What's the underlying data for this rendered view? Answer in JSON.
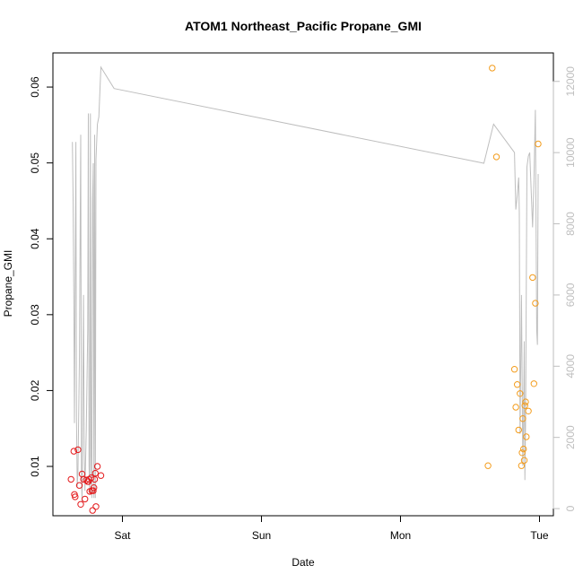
{
  "chart_data": {
    "type": "scatter",
    "title": "ATOM1 Northeast_Pacific Propane_GMI",
    "xlabel": "Date",
    "ylabel": "Propane_GMI",
    "x_ticks": [
      "Sat",
      "Sun",
      "Mon",
      "Tue"
    ],
    "ylim": [
      0.0035,
      0.0645
    ],
    "y_ticks": [
      "0.01",
      "0.02",
      "0.03",
      "0.04",
      "0.05",
      "0.06"
    ],
    "y2lim": [
      -200,
      12800
    ],
    "y2_ticks": [
      "0",
      "2000",
      "4000",
      "6000",
      "8000",
      "10000",
      "12000"
    ],
    "grid": false,
    "legend": "none",
    "colors": {
      "series_red": "#e41a1c",
      "series_orange": "#f39c1c",
      "altitude_line": "#bebebe",
      "frame": "#000000"
    },
    "series": [
      {
        "color": "red",
        "points": [
          [
            -0.37,
            0.0083
          ],
          [
            -0.35,
            0.012
          ],
          [
            -0.345,
            0.0063
          ],
          [
            -0.34,
            0.006
          ],
          [
            -0.32,
            0.0122
          ],
          [
            -0.31,
            0.0075
          ],
          [
            -0.3,
            0.005
          ],
          [
            -0.29,
            0.009
          ],
          [
            -0.28,
            0.0083
          ],
          [
            -0.27,
            0.0057
          ],
          [
            -0.26,
            0.0082
          ],
          [
            -0.25,
            0.008
          ],
          [
            -0.245,
            0.008
          ],
          [
            -0.24,
            0.0083
          ],
          [
            -0.235,
            0.0067
          ],
          [
            -0.225,
            0.0085
          ],
          [
            -0.22,
            0.0068
          ],
          [
            -0.215,
            0.0042
          ],
          [
            -0.21,
            0.0068
          ],
          [
            -0.205,
            0.0072
          ],
          [
            -0.2,
            0.0083
          ],
          [
            -0.195,
            0.0091
          ],
          [
            -0.19,
            0.0047
          ],
          [
            -0.18,
            0.01
          ],
          [
            -0.155,
            0.0088
          ]
        ]
      },
      {
        "color": "orange",
        "points": [
          [
            2.63,
            0.0101
          ],
          [
            2.66,
            0.0625
          ],
          [
            2.69,
            0.0508
          ],
          [
            2.82,
            0.0228
          ],
          [
            2.83,
            0.0178
          ],
          [
            2.84,
            0.0208
          ],
          [
            2.85,
            0.0148
          ],
          [
            2.86,
            0.0196
          ],
          [
            2.87,
            0.0101
          ],
          [
            2.875,
            0.0118
          ],
          [
            2.88,
            0.0163
          ],
          [
            2.885,
            0.0123
          ],
          [
            2.89,
            0.0108
          ],
          [
            2.895,
            0.018
          ],
          [
            2.9,
            0.0185
          ],
          [
            2.905,
            0.0139
          ],
          [
            2.92,
            0.0173
          ],
          [
            2.95,
            0.0349
          ],
          [
            2.96,
            0.0209
          ],
          [
            2.97,
            0.0315
          ],
          [
            2.99,
            0.0525
          ]
        ]
      }
    ],
    "altitude_series": {
      "axis": "right",
      "x": [
        -0.36,
        -0.355,
        -0.35,
        -0.345,
        -0.335,
        -0.33,
        -0.325,
        -0.32,
        -0.31,
        -0.3,
        -0.295,
        -0.29,
        -0.28,
        -0.275,
        -0.27,
        -0.26,
        -0.25,
        -0.245,
        -0.24,
        -0.235,
        -0.23,
        -0.225,
        -0.22,
        -0.215,
        -0.21,
        -0.205,
        -0.2,
        -0.195,
        -0.19,
        -0.18,
        -0.17,
        -0.155,
        -0.06,
        2.6,
        2.67,
        2.82,
        2.83,
        2.84,
        2.85,
        2.855,
        2.86,
        2.87,
        2.88,
        2.885,
        2.89,
        2.895,
        2.9,
        2.91,
        2.92,
        2.93,
        2.95,
        2.96,
        2.97,
        2.98,
        2.985,
        2.99
      ],
      "y": [
        10300,
        8700,
        6000,
        2400,
        10300,
        2500,
        600,
        1000,
        4100,
        10500,
        900,
        200,
        6000,
        1600,
        500,
        2200,
        5000,
        11100,
        1200,
        400,
        11100,
        1500,
        300,
        8600,
        9700,
        300,
        10500,
        300,
        9800,
        10800,
        11000,
        12400,
        11800,
        9700,
        10800,
        10000,
        8400,
        8800,
        9300,
        8300,
        2100,
        6000,
        1200,
        2400,
        4700,
        800,
        2500,
        9600,
        9900,
        10000,
        7900,
        9200,
        11200,
        5000,
        4600,
        9400
      ]
    }
  }
}
